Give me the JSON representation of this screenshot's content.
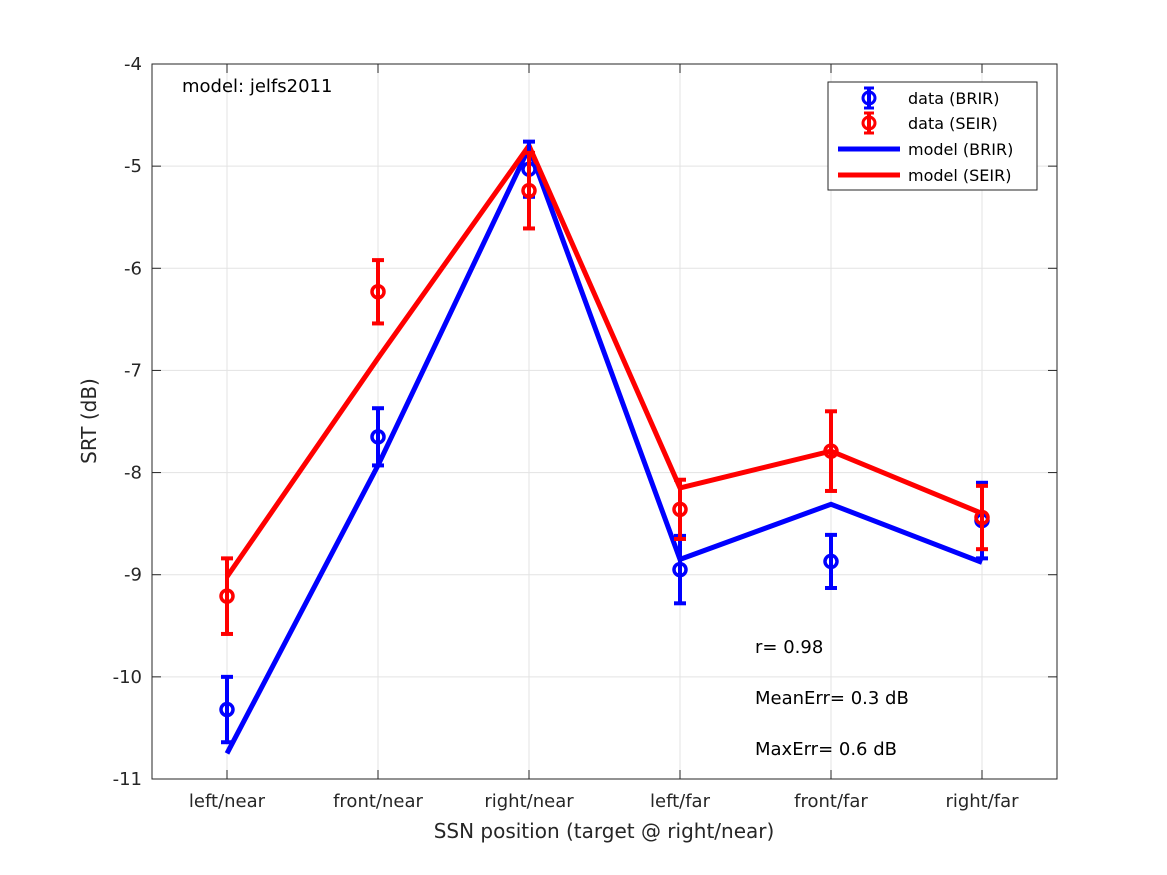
{
  "chart_data": {
    "type": "line",
    "title": "",
    "xlabel": "SSN position (target @ right/near)",
    "ylabel": "SRT (dB)",
    "categories": [
      "left/near",
      "front/near",
      "right/near",
      "left/far",
      "front/far",
      "right/far"
    ],
    "ylim": [
      -11,
      -4
    ],
    "yticks": [
      -11,
      -10,
      -9,
      -8,
      -7,
      -6,
      -5,
      -4
    ],
    "grid": true,
    "legend_position": "top-right",
    "series": [
      {
        "name": "data (BRIR)",
        "kind": "errorbar",
        "color": "#0000ff",
        "values": [
          -10.32,
          -7.65,
          -5.03,
          -8.95,
          -8.87,
          -8.47
        ],
        "errors": [
          0.32,
          0.28,
          0.27,
          0.33,
          0.26,
          0.37
        ]
      },
      {
        "name": "data (SEIR)",
        "kind": "errorbar",
        "color": "#ff0000",
        "values": [
          -9.21,
          -6.23,
          -5.24,
          -8.36,
          -7.79,
          -8.44
        ],
        "errors": [
          0.37,
          0.31,
          0.37,
          0.29,
          0.39,
          0.31
        ]
      },
      {
        "name": "model (BRIR)",
        "kind": "line",
        "color": "#0000ff",
        "values": [
          -10.75,
          -7.93,
          -4.82,
          -8.85,
          -8.31,
          -8.88
        ]
      },
      {
        "name": "model (SEIR)",
        "kind": "line",
        "color": "#ff0000",
        "values": [
          -9.02,
          -6.88,
          -4.8,
          -8.15,
          -7.79,
          -8.4
        ]
      }
    ],
    "annotations": {
      "model": "model: jelfs2011",
      "r": "r= 0.98",
      "mean_err": "MeanErr= 0.3 dB",
      "max_err": "MaxErr= 0.6 dB"
    }
  }
}
